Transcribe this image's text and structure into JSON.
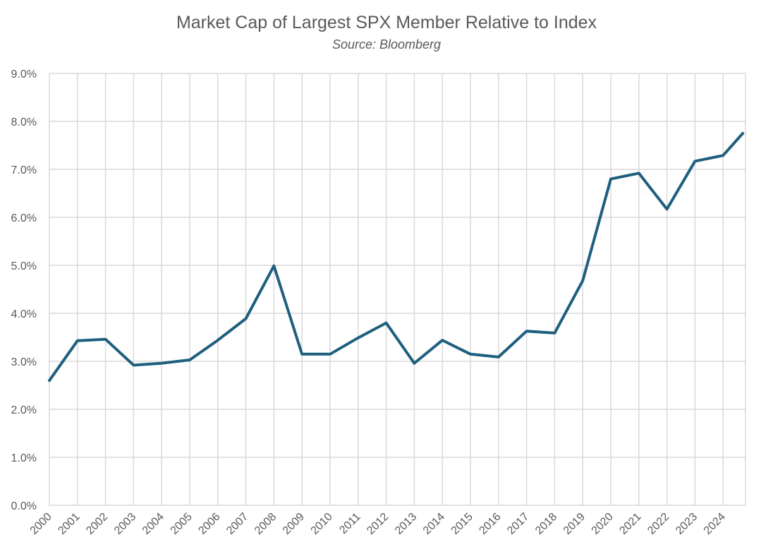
{
  "chart_data": {
    "type": "line",
    "title": "Market Cap of Largest SPX Member Relative to Index",
    "subtitle": "Source: Bloomberg",
    "xlabel": "",
    "ylabel": "",
    "ylim": [
      0,
      9
    ],
    "yticks": [
      "0.0%",
      "1.0%",
      "2.0%",
      "3.0%",
      "4.0%",
      "5.0%",
      "6.0%",
      "7.0%",
      "8.0%",
      "9.0%"
    ],
    "categories": [
      "2000",
      "2001",
      "2002",
      "2003",
      "2004",
      "2005",
      "2006",
      "2007",
      "2008",
      "2009",
      "2010",
      "2011",
      "2012",
      "2013",
      "2014",
      "2015",
      "2016",
      "2017",
      "2018",
      "2019",
      "2020",
      "2021",
      "2022",
      "2023",
      "2024"
    ],
    "x": [
      0,
      1,
      2,
      3,
      4,
      5,
      6,
      7,
      8,
      9,
      10,
      11,
      12,
      13,
      14,
      15,
      16,
      17,
      18,
      19,
      20,
      21,
      22,
      23,
      24,
      24.7
    ],
    "series": [
      {
        "values": [
          2.6,
          3.43,
          3.46,
          2.92,
          2.96,
          3.03,
          3.44,
          3.89,
          4.99,
          3.15,
          3.15,
          3.49,
          3.8,
          2.96,
          3.44,
          3.15,
          3.09,
          3.63,
          3.59,
          4.68,
          6.8,
          6.92,
          6.17,
          7.17,
          7.29,
          7.75
        ],
        "color": "#1F5F7E"
      }
    ],
    "grid": true,
    "gridColor": "#D9D9D9",
    "legend": "none"
  }
}
